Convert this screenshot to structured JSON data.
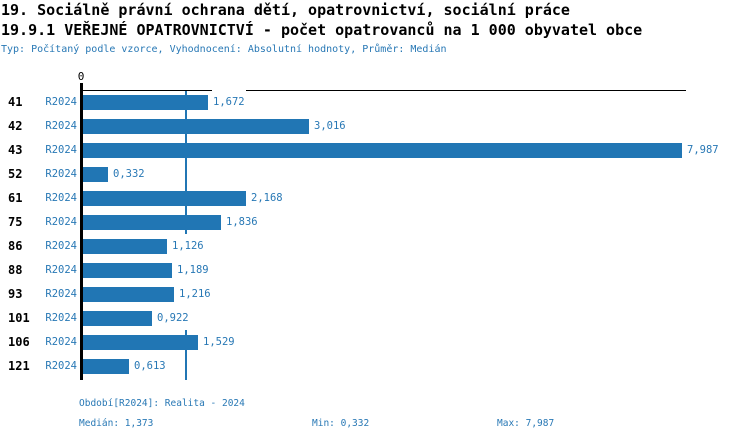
{
  "header": {
    "title1": "19. Sociálně právní ochrana dětí, opatrovnictví, sociální práce",
    "title2": "19.9.1 VEŘEJNÉ OPATROVNICTVÍ - počet opatrovanců na 1 000 obyvatel obce",
    "subtitle": "Typ: Počítaný podle vzorce, Vyhodnocení: Absolutní hodnoty, Průměr: Medián"
  },
  "chart_data": {
    "type": "bar",
    "orientation": "horizontal",
    "title": "19.9.1 VEŘEJNÉ OPATROVNICTVÍ - počet opatrovanců na 1 000 obyvatel obce",
    "categories": [
      "41",
      "42",
      "43",
      "52",
      "61",
      "75",
      "86",
      "88",
      "93",
      "101",
      "106",
      "121"
    ],
    "series_label": "R2024",
    "values": [
      1.672,
      3.016,
      7.987,
      0.332,
      2.168,
      1.836,
      1.126,
      1.189,
      1.216,
      0.922,
      1.529,
      0.613
    ],
    "value_labels": [
      "1,672",
      "3,016",
      "7,987",
      "0,332",
      "2,168",
      "1,836",
      "1,126",
      "1,189",
      "1,216",
      "0,922",
      "1,529",
      "0,613"
    ],
    "xlim": [
      0,
      8.06
    ],
    "x_tick_labels": [
      "0"
    ],
    "median": 1.373,
    "grid": false,
    "legend": false,
    "bar_color": "#2176b4",
    "median_line_color": "#2176b4",
    "label_color": "#2878b5"
  },
  "footer": {
    "period": "Období[R2024]: Realita - 2024",
    "median": "Medián: 1,373",
    "min": "Min: 0,332",
    "max": "Max: 7,987"
  },
  "colors": {
    "accent": "#2176b4",
    "blue_text": "#2878b5",
    "axis": "#000000",
    "background": "#ffffff"
  }
}
